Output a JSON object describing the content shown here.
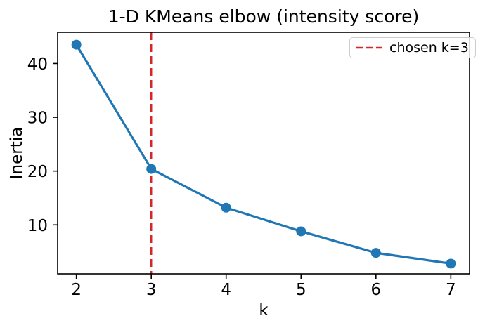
{
  "figure": {
    "background_color": "#ffffff"
  },
  "chart_data": {
    "type": "line",
    "title": "1-D KMeans elbow (intensity score)",
    "xlabel": "k",
    "ylabel": "Inertia",
    "series": [
      {
        "name": "inertia",
        "x": [
          2,
          3,
          4,
          5,
          6,
          7
        ],
        "y": [
          43.5,
          20.4,
          13.2,
          8.8,
          4.8,
          2.8
        ],
        "color": "#1f77b4",
        "marker": "o",
        "line_style": "solid"
      }
    ],
    "vline": {
      "x": 3,
      "color": "#d62728",
      "line_style": "dashed",
      "label": "chosen k=3"
    },
    "xticks": [
      2,
      3,
      4,
      5,
      6,
      7
    ],
    "yticks": [
      10,
      20,
      30,
      40
    ],
    "xlim": [
      1.75,
      7.25
    ],
    "ylim": [
      0.9,
      45.8
    ],
    "grid": false,
    "legend_position": "upper right",
    "legend_entries": [
      "chosen k=3"
    ]
  },
  "colors": {
    "line": "#1f77b4",
    "vline": "#d62728",
    "spine": "#000000",
    "legend_border": "#cccccc",
    "text": "#000000"
  }
}
